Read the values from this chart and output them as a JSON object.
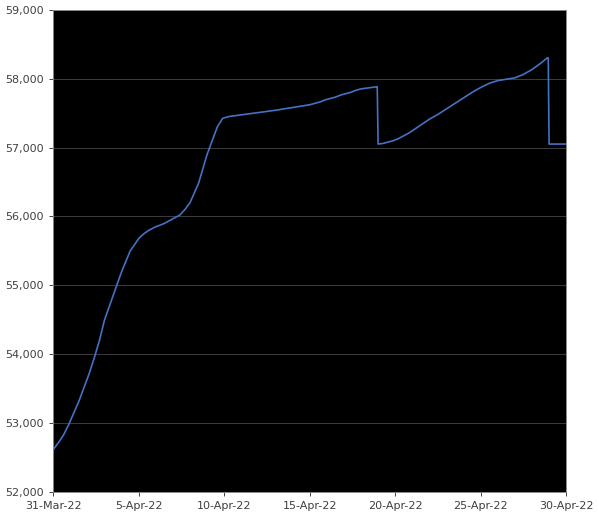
{
  "background_color": "#ffffff",
  "plot_bg_color": "#000000",
  "line_color": "#4472C4",
  "text_color": "#404040",
  "grid_color": "#555555",
  "spine_color": "#888888",
  "ylim": [
    52000,
    59000
  ],
  "yticks": [
    52000,
    53000,
    54000,
    55000,
    56000,
    57000,
    58000,
    59000
  ],
  "ytick_labels": [
    "52,000",
    "53,000",
    "54,000",
    "55,000",
    "56,000",
    "57,000",
    "58,000",
    "59,000"
  ],
  "xtick_labels": [
    "31-Mar-22",
    "5-Apr-22",
    "10-Apr-22",
    "15-Apr-22",
    "20-Apr-22",
    "25-Apr-22",
    "30-Apr-22"
  ],
  "x_days": [
    0,
    5,
    10,
    15,
    20,
    25,
    30,
    31
  ],
  "line_width": 1.2,
  "figsize": [
    5.99,
    5.17
  ],
  "dpi": 100,
  "data_x": [
    0.0,
    0.3,
    0.6,
    0.9,
    1.2,
    1.5,
    1.8,
    2.1,
    2.4,
    2.7,
    3.0,
    3.5,
    4.0,
    4.5,
    5.0,
    5.3,
    5.6,
    5.9,
    6.2,
    6.5,
    6.8,
    7.1,
    7.4,
    7.7,
    8.0,
    8.5,
    9.0,
    9.3,
    9.6,
    9.9,
    10.0,
    10.3,
    10.6,
    10.9,
    11.2,
    11.5,
    11.8,
    12.1,
    12.4,
    12.7,
    13.0,
    13.5,
    14.0,
    14.5,
    15.0,
    15.3,
    15.6,
    15.9,
    16.2,
    16.5,
    16.8,
    17.1,
    17.4,
    17.7,
    18.0,
    18.3,
    18.6,
    18.9,
    18.95,
    19.0,
    19.3,
    19.6,
    19.9,
    20.2,
    20.5,
    20.8,
    21.1,
    21.4,
    21.7,
    22.0,
    22.5,
    23.0,
    23.5,
    24.0,
    24.5,
    25.0,
    25.5,
    26.0,
    26.5,
    27.0,
    27.5,
    28.0,
    28.5,
    28.9,
    28.95,
    29.0,
    29.5,
    30.0
  ],
  "data_y": [
    52620,
    52720,
    52830,
    52980,
    53150,
    53320,
    53520,
    53720,
    53950,
    54200,
    54500,
    54850,
    55200,
    55500,
    55680,
    55750,
    55800,
    55840,
    55870,
    55900,
    55940,
    55980,
    56020,
    56100,
    56200,
    56480,
    56900,
    57100,
    57300,
    57420,
    57430,
    57450,
    57460,
    57470,
    57480,
    57490,
    57500,
    57510,
    57520,
    57530,
    57540,
    57560,
    57580,
    57600,
    57620,
    57640,
    57660,
    57690,
    57710,
    57730,
    57760,
    57780,
    57800,
    57830,
    57850,
    57860,
    57870,
    57880,
    57880,
    57050,
    57060,
    57080,
    57100,
    57130,
    57170,
    57210,
    57260,
    57310,
    57360,
    57410,
    57480,
    57560,
    57640,
    57720,
    57800,
    57870,
    57930,
    57970,
    57990,
    58010,
    58060,
    58130,
    58220,
    58300,
    58300,
    57050,
    57050,
    57050
  ]
}
